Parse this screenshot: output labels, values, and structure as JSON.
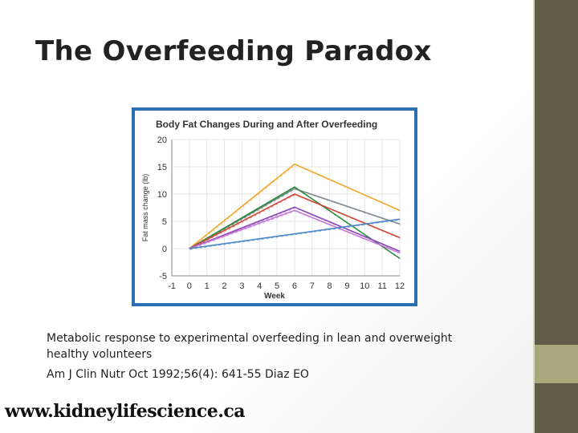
{
  "slide": {
    "title": "The Overfeeding Paradox",
    "caption": "Metabolic response to experimental overfeeding in lean and overweight healthy volunteers",
    "citation": "Am J Clin Nutr Oct 1992;56(4): 641-55 Diaz EO",
    "website": "www.kidneylifescience.ca",
    "colors": {
      "accent_dark": "#625a45",
      "accent_light": "#a9a77d",
      "chart_border": "#2d6db5"
    }
  },
  "chart_data": {
    "type": "line",
    "title": "Body Fat Changes During and After Overfeeding",
    "xlabel": "Week",
    "ylabel": "Fat mass change (lb)",
    "xlim": [
      -1,
      12
    ],
    "ylim": [
      -5,
      20
    ],
    "xticks": [
      -1,
      0,
      1,
      2,
      3,
      4,
      5,
      6,
      7,
      8,
      9,
      10,
      11,
      12
    ],
    "yticks": [
      -5,
      0,
      5,
      10,
      15,
      20
    ],
    "series": [
      {
        "color": "#f0a830",
        "points": [
          [
            0,
            0
          ],
          [
            6,
            15.5
          ],
          [
            12,
            7
          ]
        ]
      },
      {
        "color": "#7f8890",
        "points": [
          [
            0,
            0
          ],
          [
            6,
            11
          ],
          [
            12,
            4.5
          ]
        ]
      },
      {
        "color": "#2e8b3e",
        "points": [
          [
            0,
            0
          ],
          [
            6,
            11.3
          ],
          [
            12,
            -1.8
          ]
        ]
      },
      {
        "color": "#d2483a",
        "points": [
          [
            0,
            0
          ],
          [
            6,
            10
          ],
          [
            12,
            2
          ]
        ]
      },
      {
        "color": "#8a48b8",
        "points": [
          [
            0,
            0
          ],
          [
            6,
            7.6
          ],
          [
            12,
            -0.5
          ]
        ]
      },
      {
        "color": "#c678d6",
        "points": [
          [
            0,
            0
          ],
          [
            6,
            7
          ],
          [
            12,
            -0.8
          ]
        ]
      },
      {
        "color": "#4a86c8",
        "points": [
          [
            0,
            0
          ],
          [
            12,
            5.4
          ]
        ]
      }
    ]
  }
}
